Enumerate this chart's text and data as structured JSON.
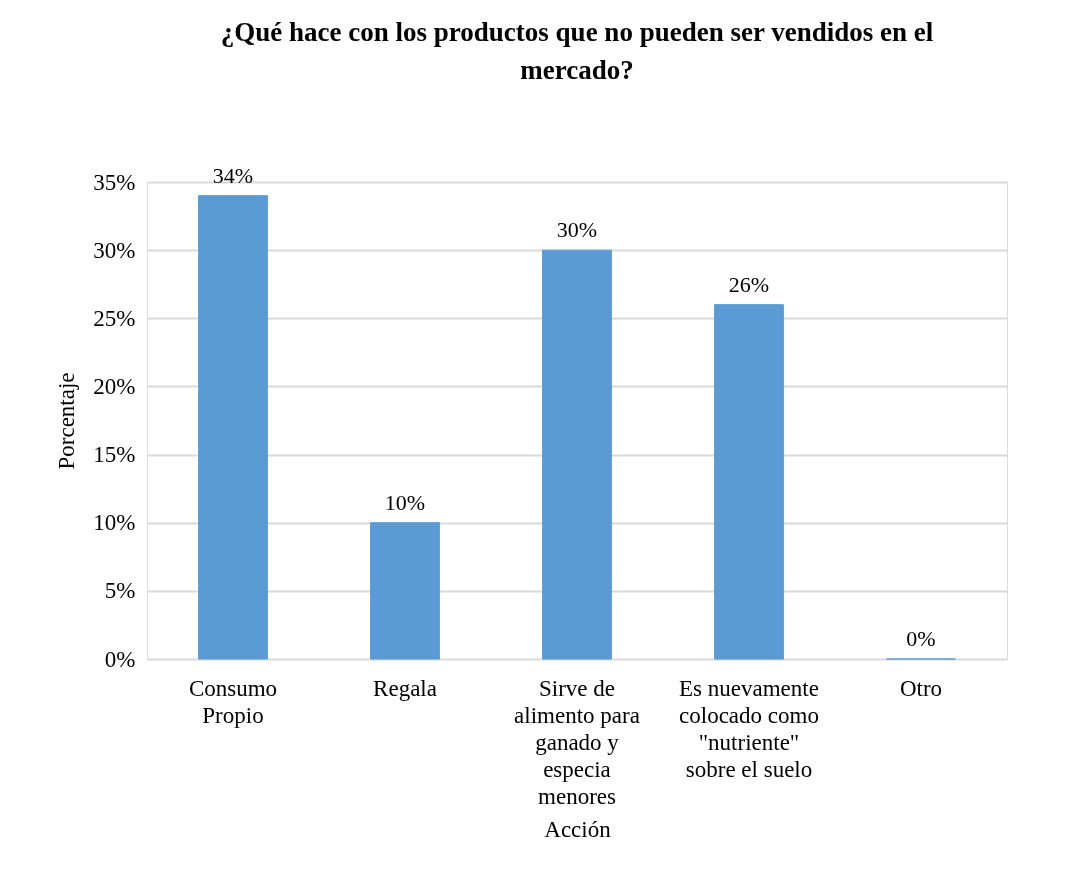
{
  "chart_data": {
    "type": "bar",
    "title": "¿Qué hace con los productos que no pueden ser vendidos en el mercado?",
    "xlabel": "Acción",
    "ylabel": "Porcentaje",
    "categories": [
      "Consumo Propio",
      "Regala",
      "Sirve de alimento para ganado y especia menores",
      "Es nuevamente colocado como \"nutriente\" sobre el suelo",
      "Otro"
    ],
    "values": [
      34,
      10,
      30,
      26,
      0
    ],
    "value_labels": [
      "34%",
      "10%",
      "30%",
      "26%",
      "0%"
    ],
    "color": "#5b9bd5",
    "ylim": [
      0,
      35
    ],
    "yticks": [
      {
        "value": 0,
        "label": "0%"
      },
      {
        "value": 5,
        "label": "5%"
      },
      {
        "value": 10,
        "label": "10%"
      },
      {
        "value": 15,
        "label": "15%"
      },
      {
        "value": 20,
        "label": "20%"
      },
      {
        "value": 25,
        "label": "25%"
      },
      {
        "value": 30,
        "label": "30%"
      },
      {
        "value": 35,
        "label": "35%"
      }
    ],
    "grid": "y"
  }
}
